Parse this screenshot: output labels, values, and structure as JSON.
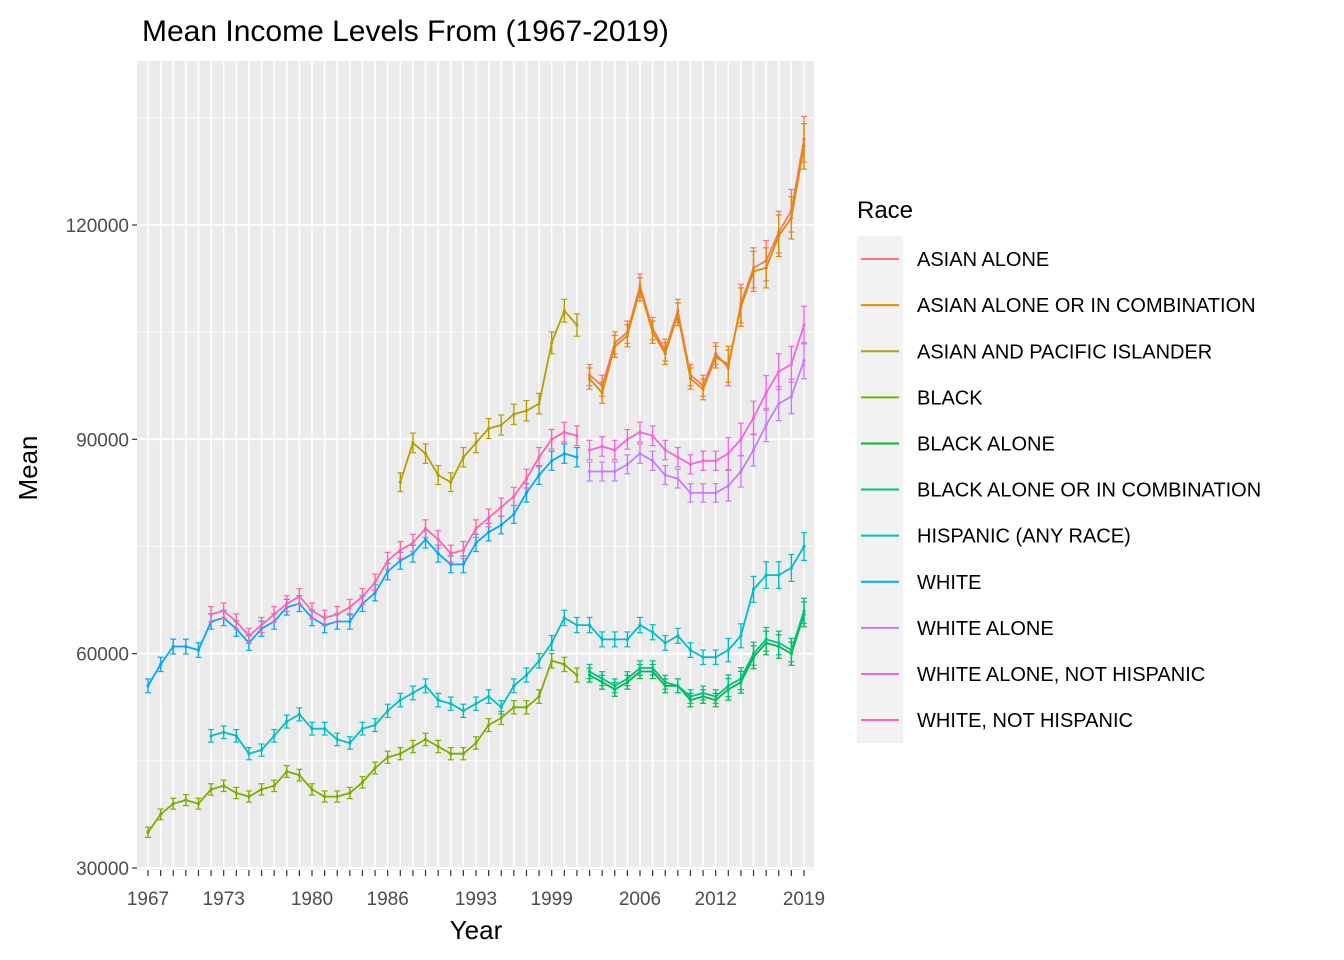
{
  "chart_data": {
    "type": "line",
    "title": "Mean Income Levels From (1967-2019)",
    "xlabel": "Year",
    "ylabel": "Mean",
    "xlim": [
      1967,
      2019
    ],
    "ylim": [
      30000,
      138000
    ],
    "x_tick_labels": [
      1967,
      1973,
      1980,
      1986,
      1993,
      1999,
      2006,
      2012,
      2019
    ],
    "y_tick_labels": [
      30000,
      60000,
      90000,
      120000
    ],
    "grid": true,
    "legend": {
      "title": "Race",
      "position": "right"
    },
    "series": [
      {
        "name": "ASIAN ALONE",
        "color": "#F8766D",
        "x": [
          2002,
          2003,
          2004,
          2005,
          2006,
          2007,
          2008,
          2009,
          2010,
          2011,
          2012,
          2013,
          2014,
          2015,
          2016,
          2017,
          2018,
          2019
        ],
        "y": [
          99000,
          97500,
          103500,
          105000,
          111500,
          105500,
          102500,
          108000,
          99000,
          97500,
          102000,
          100000,
          109000,
          114000,
          115000,
          119000,
          122000,
          132000
        ]
      },
      {
        "name": "ASIAN ALONE OR IN COMBINATION",
        "color": "#DE8C00",
        "x": [
          2002,
          2003,
          2004,
          2005,
          2006,
          2007,
          2008,
          2009,
          2010,
          2011,
          2012,
          2013,
          2014,
          2015,
          2016,
          2017,
          2018,
          2019
        ],
        "y": [
          98500,
          96500,
          103000,
          104500,
          111000,
          105000,
          102000,
          107500,
          98500,
          97000,
          101500,
          100500,
          108500,
          113500,
          114000,
          118500,
          121000,
          131000
        ]
      },
      {
        "name": "ASIAN AND PACIFIC ISLANDER",
        "color": "#B79F00",
        "x": [
          1987,
          1988,
          1989,
          1990,
          1991,
          1992,
          1993,
          1994,
          1995,
          1996,
          1997,
          1998,
          1999,
          2000,
          2001
        ],
        "y": [
          84000,
          89500,
          88000,
          85000,
          84000,
          87500,
          89500,
          91500,
          92000,
          93500,
          94000,
          95000,
          103500,
          108000,
          106000
        ]
      },
      {
        "name": "BLACK",
        "color": "#7CAE00",
        "x": [
          1967,
          1968,
          1969,
          1970,
          1971,
          1972,
          1973,
          1974,
          1975,
          1976,
          1977,
          1978,
          1979,
          1980,
          1981,
          1982,
          1983,
          1984,
          1985,
          1986,
          1987,
          1988,
          1989,
          1990,
          1991,
          1992,
          1993,
          1994,
          1995,
          1996,
          1997,
          1998,
          1999,
          2000,
          2001
        ],
        "y": [
          35000,
          37500,
          39000,
          39500,
          39000,
          41000,
          41500,
          40500,
          40000,
          41000,
          41500,
          43500,
          43000,
          41000,
          40000,
          40000,
          40500,
          42000,
          44000,
          45500,
          46000,
          47000,
          48000,
          47000,
          46000,
          46000,
          47500,
          50000,
          51000,
          52500,
          52500,
          54000,
          59000,
          58500,
          57000
        ]
      },
      {
        "name": "BLACK ALONE",
        "color": "#00BA38",
        "x": [
          2002,
          2003,
          2004,
          2005,
          2006,
          2007,
          2008,
          2009,
          2010,
          2011,
          2012,
          2013,
          2014,
          2015,
          2016,
          2017,
          2018,
          2019
        ],
        "y": [
          57000,
          56000,
          55000,
          56000,
          57500,
          57500,
          55500,
          55500,
          53500,
          54000,
          53500,
          55000,
          56000,
          59500,
          61500,
          61000,
          60000,
          65500
        ]
      },
      {
        "name": "BLACK ALONE OR IN COMBINATION",
        "color": "#00C08B",
        "x": [
          2002,
          2003,
          2004,
          2005,
          2006,
          2007,
          2008,
          2009,
          2010,
          2011,
          2012,
          2013,
          2014,
          2015,
          2016,
          2017,
          2018,
          2019
        ],
        "y": [
          57500,
          56500,
          55500,
          56500,
          58000,
          58000,
          56000,
          55500,
          54000,
          54500,
          54000,
          55500,
          56500,
          60000,
          62000,
          61500,
          60500,
          66000
        ]
      },
      {
        "name": "HISPANIC (ANY RACE)",
        "color": "#00BFC4",
        "x": [
          1972,
          1973,
          1974,
          1975,
          1976,
          1977,
          1978,
          1979,
          1980,
          1981,
          1982,
          1983,
          1984,
          1985,
          1986,
          1987,
          1988,
          1989,
          1990,
          1991,
          1992,
          1993,
          1994,
          1995,
          1996,
          1997,
          1998,
          1999,
          2000,
          2001,
          2002,
          2003,
          2004,
          2005,
          2006,
          2007,
          2008,
          2009,
          2010,
          2011,
          2012,
          2013,
          2014,
          2015,
          2016,
          2017,
          2018,
          2019
        ],
        "y": [
          48500,
          49000,
          48500,
          46000,
          46500,
          48500,
          50500,
          51500,
          49500,
          49500,
          48000,
          47500,
          49500,
          50000,
          52000,
          53500,
          54500,
          55500,
          53500,
          53000,
          52000,
          53000,
          54000,
          52500,
          55500,
          57000,
          59000,
          61500,
          65000,
          64000,
          64000,
          62000,
          62000,
          62000,
          64000,
          63000,
          61500,
          62500,
          60500,
          59500,
          59500,
          60500,
          62500,
          69000,
          71000,
          71000,
          72000,
          75000
        ]
      },
      {
        "name": "WHITE",
        "color": "#00A9FF",
        "x": [
          1967,
          1968,
          1969,
          1970,
          1971,
          1972,
          1973,
          1974,
          1975,
          1976,
          1977,
          1978,
          1979,
          1980,
          1981,
          1982,
          1983,
          1984,
          1985,
          1986,
          1987,
          1988,
          1989,
          1990,
          1991,
          1992,
          1993,
          1994,
          1995,
          1996,
          1997,
          1998,
          1999,
          2000,
          2001
        ],
        "y": [
          55500,
          58500,
          61000,
          61000,
          60500,
          64500,
          65000,
          63500,
          61500,
          63500,
          64500,
          66500,
          67000,
          65000,
          64000,
          64500,
          64500,
          67000,
          68500,
          71500,
          73000,
          74000,
          76000,
          74000,
          72500,
          72500,
          75500,
          77000,
          78000,
          79500,
          82500,
          85000,
          87000,
          88000,
          87500
        ]
      },
      {
        "name": "WHITE ALONE",
        "color": "#C77CFF",
        "x": [
          2002,
          2003,
          2004,
          2005,
          2006,
          2007,
          2008,
          2009,
          2010,
          2011,
          2012,
          2013,
          2014,
          2015,
          2016,
          2017,
          2018,
          2019
        ],
        "y": [
          85500,
          85500,
          85500,
          86500,
          88000,
          87000,
          85000,
          84500,
          82500,
          82500,
          82500,
          83500,
          85500,
          88500,
          92000,
          95000,
          96000,
          101000
        ]
      },
      {
        "name": "WHITE ALONE, NOT HISPANIC",
        "color": "#F564E3",
        "x": [
          2002,
          2003,
          2004,
          2005,
          2006,
          2007,
          2008,
          2009,
          2010,
          2011,
          2012,
          2013,
          2014,
          2015,
          2016,
          2017,
          2018,
          2019
        ],
        "y": [
          88500,
          89000,
          88500,
          90000,
          91000,
          90500,
          88500,
          87500,
          86500,
          87000,
          87000,
          88000,
          90000,
          93000,
          96500,
          99500,
          100500,
          106000
        ]
      },
      {
        "name": "WHITE, NOT HISPANIC",
        "color": "#FF64B0",
        "x": [
          1972,
          1973,
          1974,
          1975,
          1976,
          1977,
          1978,
          1979,
          1980,
          1981,
          1982,
          1983,
          1984,
          1985,
          1986,
          1987,
          1988,
          1989,
          1990,
          1991,
          1992,
          1993,
          1994,
          1995,
          1996,
          1997,
          1998,
          1999,
          2000,
          2001
        ],
        "y": [
          65500,
          66000,
          64500,
          62500,
          64000,
          65500,
          67000,
          68000,
          66000,
          65000,
          65500,
          66500,
          68000,
          70000,
          73000,
          74500,
          75500,
          77500,
          76000,
          74000,
          74500,
          77500,
          79000,
          80500,
          82000,
          84500,
          87500,
          90000,
          91000,
          90500
        ]
      }
    ]
  }
}
